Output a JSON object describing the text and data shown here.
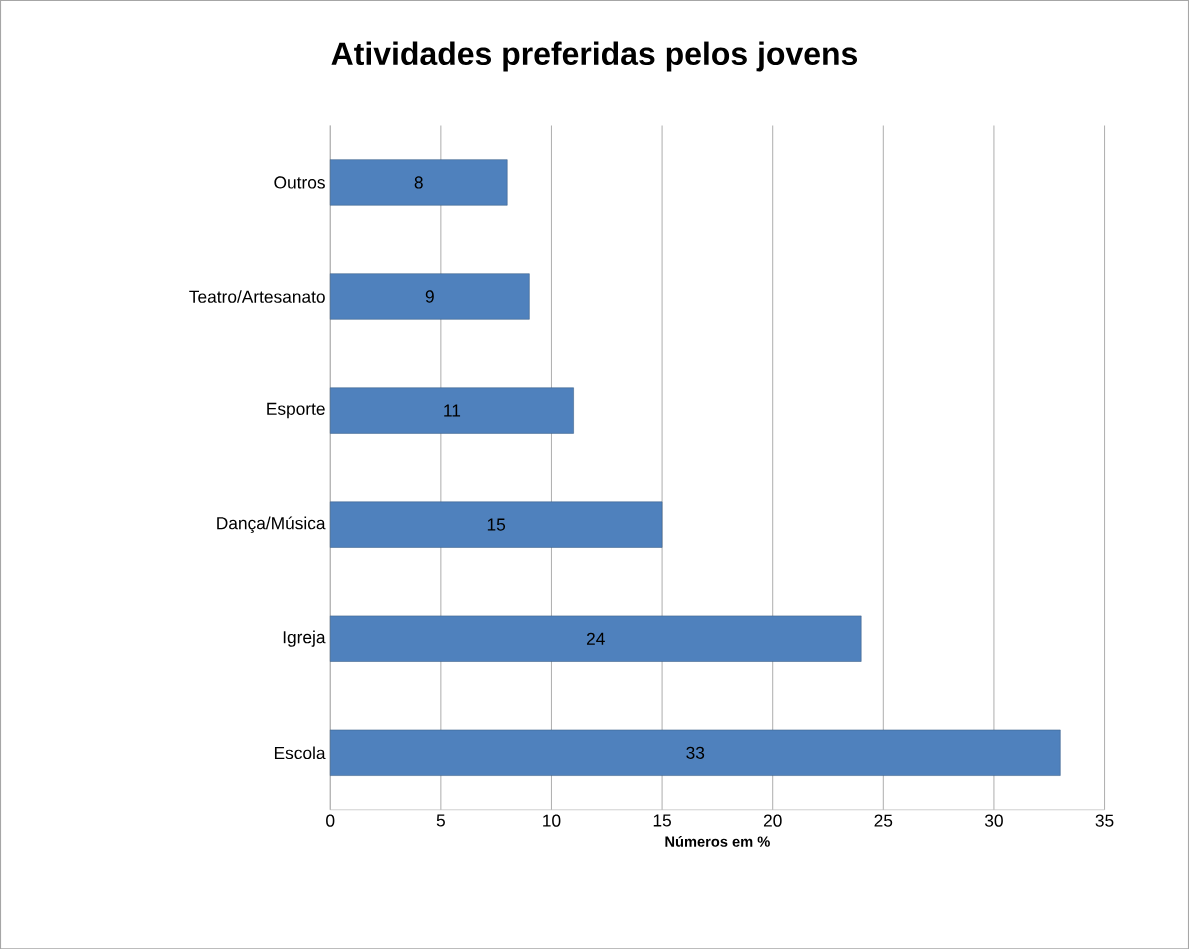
{
  "chart_data": {
    "type": "bar",
    "orientation": "horizontal",
    "title": "Atividades preferidas pelos jovens",
    "xlabel": "Números em %",
    "categories": [
      "Outros",
      "Teatro/Artesanato",
      "Esporte",
      "Dança/Música",
      "Igreja",
      "Escola"
    ],
    "values": [
      8,
      9,
      11,
      15,
      24,
      33
    ],
    "color": "#4f81bd",
    "xlim": [
      0,
      35
    ],
    "xticks": [
      0,
      5,
      10,
      15,
      20,
      25,
      30,
      35
    ],
    "grid": "x",
    "data_labels": true
  }
}
